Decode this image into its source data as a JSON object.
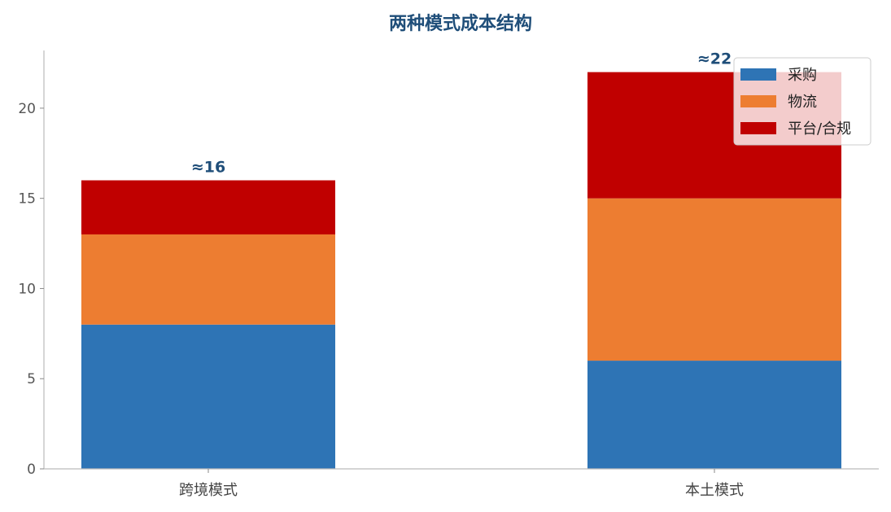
{
  "chart_data": {
    "type": "bar",
    "stacked": true,
    "title": "两种模式成本结构",
    "xlabel": "",
    "ylabel": "",
    "categories": [
      "跨境模式",
      "本土模式"
    ],
    "series": [
      {
        "name": "采购",
        "values": [
          8,
          6
        ],
        "color": "#2e74b5"
      },
      {
        "name": "物流",
        "values": [
          5,
          9
        ],
        "color": "#ed7d31"
      },
      {
        "name": "平台/合规",
        "values": [
          3,
          7
        ],
        "color": "#c00000"
      }
    ],
    "totals": [
      "≈16",
      "≈22"
    ],
    "ylim": [
      0,
      23.2
    ],
    "yticks": [
      0,
      5,
      10,
      15,
      20
    ],
    "grid": false,
    "legend_position": "top-right"
  }
}
